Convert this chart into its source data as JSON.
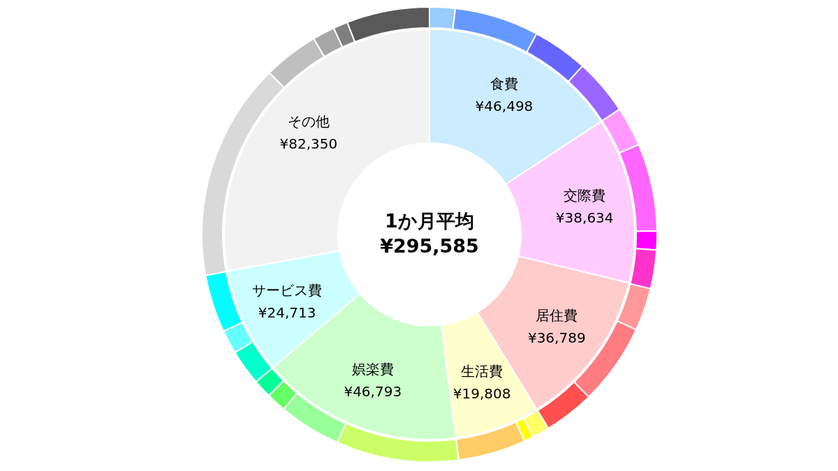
{
  "chart_data": {
    "type": "donut",
    "annotations": [
      "1か月平均",
      "¥295,585"
    ],
    "categories": [
      "食費",
      "交際費",
      "居住費",
      "生活費",
      "娯楽費",
      "サービス費",
      "その他"
    ],
    "series": [
      {
        "values": [
          46498,
          38634,
          36789,
          19808,
          46793,
          24713,
          82350
        ],
        "value_labels": [
          "¥46,498",
          "¥38,634",
          "¥36,789",
          "¥19,808",
          "¥46,793",
          "¥24,713",
          "¥82,350"
        ],
        "colors": [
          "#ccecff",
          "#ffccff",
          "#ffcccc",
          "#ffffcc",
          "#ccffcc",
          "#ccffff",
          "#f2f2f2"
        ]
      },
      {
        "x": [
          null,
          null,
          null,
          null,
          null,
          null,
          null,
          null,
          null,
          null,
          null,
          null,
          null,
          null,
          null,
          null,
          null,
          null,
          null,
          null,
          null,
          null,
          null,
          null,
          null,
          null
        ],
        "values": [
          1.81,
          5.99,
          3.93,
          4.0,
          2.81,
          6.22,
          1.33,
          2.75,
          3.04,
          5.79,
          3.58,
          1.22,
          0.67,
          4.81,
          8.69,
          4.42,
          1.42,
          1.31,
          2.53,
          1.69,
          4.11,
          15.47,
          3.92,
          1.58,
          1.03,
          5.88
        ],
        "colors": [
          "#99ccff",
          "#6699ff",
          "#6666ff",
          "#9966ff",
          "#ff99ff",
          "#ff66ff",
          "#ff00ff",
          "#ff33cc",
          "#ff9999",
          "#ff7c80",
          "#ff5050",
          "#ffff66",
          "#ffff00",
          "#ffcc66",
          "#ccff66",
          "#99ff99",
          "#66ff66",
          "#00ff99",
          "#00ffcc",
          "#66ffff",
          "#00ffff",
          "#d9d9d9",
          "#bfbfbf",
          "#a6a6a6",
          "#7f7f7f",
          "#595959"
        ]
      }
    ]
  }
}
